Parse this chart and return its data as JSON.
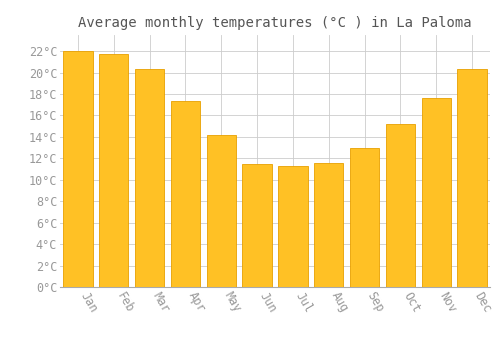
{
  "title": "Average monthly temperatures (°C ) in La Paloma",
  "months": [
    "Jan",
    "Feb",
    "Mar",
    "Apr",
    "May",
    "Jun",
    "Jul",
    "Aug",
    "Sep",
    "Oct",
    "Nov",
    "Dec"
  ],
  "values": [
    22.0,
    21.7,
    20.3,
    17.3,
    14.2,
    11.5,
    11.3,
    11.6,
    13.0,
    15.2,
    17.6,
    20.3
  ],
  "bar_color": "#FFC125",
  "bar_edge_color": "#E8A000",
  "background_color": "#FFFFFF",
  "grid_color": "#CCCCCC",
  "text_color": "#999999",
  "title_color": "#555555",
  "ylim": [
    0,
    23.5
  ],
  "yticks": [
    0,
    2,
    4,
    6,
    8,
    10,
    12,
    14,
    16,
    18,
    20,
    22
  ],
  "title_fontsize": 10,
  "tick_fontsize": 8.5,
  "font_family": "monospace",
  "bar_width": 0.82
}
